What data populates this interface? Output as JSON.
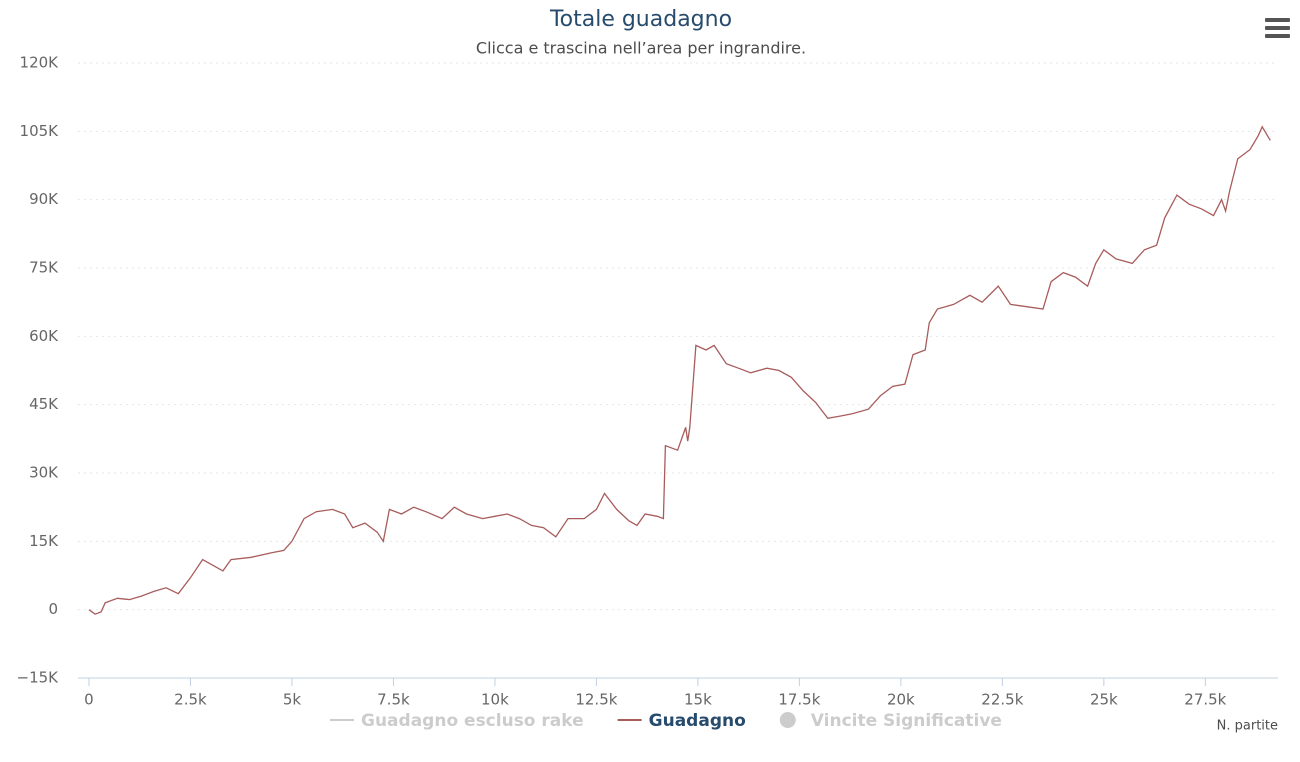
{
  "chart_data": {
    "type": "line",
    "title": "Totale guadagno",
    "subtitle": "Clicca e trascina nell’area per ingrandire.",
    "x_label": "N. partite",
    "xlim": [
      -270,
      29290
    ],
    "ylim": [
      -15000,
      120000
    ],
    "xticks": [
      0,
      {
        "value": 2500,
        "label": "2.5k"
      },
      {
        "value": 5000,
        "label": "5k"
      },
      {
        "value": 7500,
        "label": "7.5k"
      },
      {
        "value": 10000,
        "label": "10k"
      },
      {
        "value": 12500,
        "label": "12.5k"
      },
      {
        "value": 15000,
        "label": "15k"
      },
      {
        "value": 17500,
        "label": "17.5k"
      },
      {
        "value": 20000,
        "label": "20k"
      },
      {
        "value": 22500,
        "label": "22.5k"
      },
      {
        "value": 25000,
        "label": "25k"
      },
      {
        "value": 27500,
        "label": "27.5k"
      }
    ],
    "yticks": [
      {
        "value": -15000,
        "label": "−15K"
      },
      0,
      {
        "value": 15000,
        "label": "15K"
      },
      {
        "value": 30000,
        "label": "30K"
      },
      {
        "value": 45000,
        "label": "45K"
      },
      {
        "value": 60000,
        "label": "60K"
      },
      {
        "value": 75000,
        "label": "75K"
      },
      {
        "value": 90000,
        "label": "90K"
      },
      {
        "value": 105000,
        "label": "105K"
      },
      {
        "value": 120000,
        "label": "120K"
      }
    ],
    "grid": true,
    "x": [
      0,
      150,
      300,
      400,
      700,
      1000,
      1300,
      1600,
      1900,
      2200,
      2500,
      2800,
      3000,
      3300,
      3500,
      4000,
      4500,
      4800,
      5000,
      5300,
      5600,
      6000,
      6300,
      6500,
      6800,
      7100,
      7250,
      7400,
      7700,
      8000,
      8300,
      8700,
      9000,
      9300,
      9700,
      10000,
      10300,
      10600,
      10900,
      11200,
      11500,
      11800,
      12200,
      12500,
      12700,
      13000,
      13300,
      13500,
      13700,
      14000,
      14150,
      14200,
      14500,
      14700,
      14750,
      14800,
      14950,
      15200,
      15400,
      15700,
      16000,
      16300,
      16700,
      17000,
      17300,
      17600,
      17900,
      18200,
      18500,
      18800,
      19200,
      19500,
      19800,
      20100,
      20300,
      20600,
      20700,
      20900,
      21300,
      21700,
      22000,
      22400,
      22700,
      23100,
      23500,
      23700,
      24000,
      24300,
      24600,
      24800,
      25000,
      25300,
      25700,
      26000,
      26300,
      26500,
      26800,
      27100,
      27400,
      27700,
      27900,
      28000,
      28100,
      28300,
      28600,
      28800,
      28900,
      29100
    ],
    "series": [
      {
        "name": "Guadagno",
        "color": "#a85c5c",
        "values": [
          0,
          -1000,
          -500,
          1500,
          2500,
          2200,
          3000,
          4000,
          4800,
          3500,
          7000,
          11000,
          10000,
          8500,
          11000,
          11500,
          12500,
          13000,
          15000,
          20000,
          21500,
          22000,
          21000,
          18000,
          19000,
          17000,
          15000,
          22000,
          21000,
          22500,
          21500,
          20000,
          22500,
          21000,
          20000,
          20500,
          21000,
          20000,
          18500,
          18000,
          16000,
          20000,
          20000,
          22000,
          25500,
          22000,
          19500,
          18500,
          21000,
          20500,
          20000,
          36000,
          35000,
          40000,
          37000,
          40000,
          58000,
          57000,
          58000,
          54000,
          53000,
          52000,
          53000,
          52500,
          51000,
          48000,
          45500,
          42000,
          42500,
          43000,
          44000,
          47000,
          49000,
          49500,
          56000,
          57000,
          63000,
          66000,
          67000,
          69000,
          67500,
          71000,
          67000,
          66500,
          66000,
          72000,
          74000,
          73000,
          71000,
          76000,
          79000,
          77000,
          76000,
          79000,
          80000,
          86000,
          91000,
          89000,
          88000,
          86500,
          90000,
          87500,
          92000,
          99000,
          101000,
          104000,
          106000,
          103000
        ]
      }
    ],
    "legend": [
      {
        "name": "Guadagno escluso rake",
        "color": "#cccccc",
        "symbol": "line",
        "visible": false
      },
      {
        "name": "Guadagno",
        "color": "#a85c5c",
        "symbol": "line",
        "visible": true
      },
      {
        "name": "Vincite Significative",
        "color": "#cccccc",
        "symbol": "circle",
        "visible": false
      }
    ]
  }
}
